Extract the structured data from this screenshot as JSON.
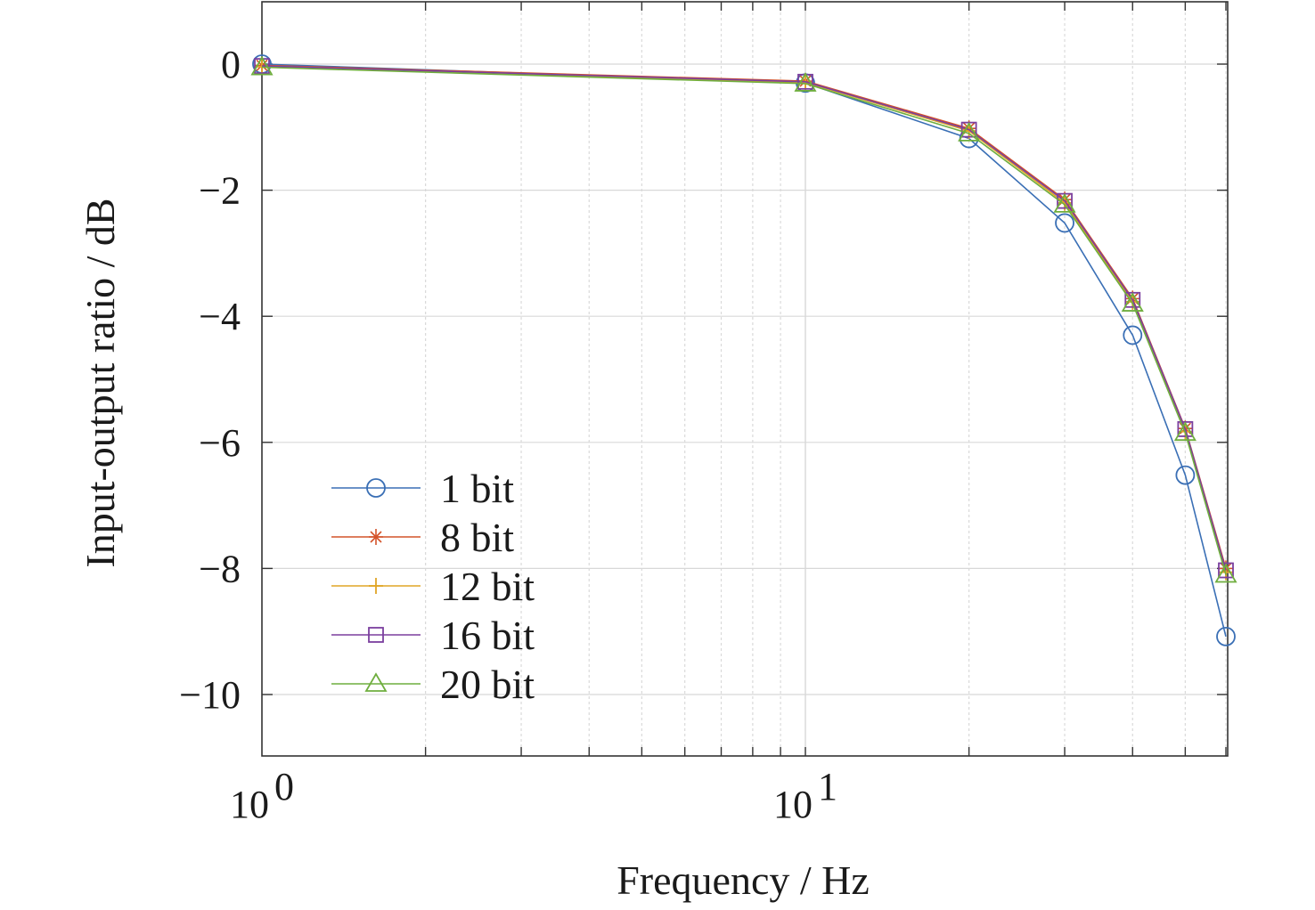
{
  "chart_data": {
    "type": "line",
    "title": "",
    "xlabel": "Frequency / Hz",
    "ylabel": "Input-output ratio / dB",
    "x_scale": "log",
    "xlim": [
      1,
      56
    ],
    "ylim": [
      -11,
      1
    ],
    "grid": true,
    "legend_position": "bottom-left",
    "x_ticks": [
      {
        "value": 1,
        "base": "10",
        "exp": "0"
      },
      {
        "value": 10,
        "base": "10",
        "exp": "1"
      }
    ],
    "y_ticks": [
      {
        "value": 0,
        "label": "0"
      },
      {
        "value": -2,
        "label": "−2"
      },
      {
        "value": -4,
        "label": "−4"
      },
      {
        "value": -6,
        "label": "−6"
      },
      {
        "value": -8,
        "label": "−8"
      },
      {
        "value": -10,
        "label": "−10"
      }
    ],
    "x": [
      1,
      10,
      20,
      30,
      40,
      50,
      60
    ],
    "series": [
      {
        "name": "1 bit",
        "color": "#3a6fb5",
        "marker": "circle",
        "values": [
          0,
          -0.3,
          -1.18,
          -2.52,
          -4.3,
          -6.52,
          -9.08
        ]
      },
      {
        "name": "8 bit",
        "color": "#d4532a",
        "marker": "asterisk",
        "values": [
          -0.02,
          -0.27,
          -1.02,
          -2.15,
          -3.72,
          -5.78,
          -8.0
        ]
      },
      {
        "name": "12 bit",
        "color": "#e0a526",
        "marker": "plus",
        "values": [
          -0.04,
          -0.29,
          -1.06,
          -2.2,
          -3.77,
          -5.83,
          -8.06
        ]
      },
      {
        "name": "16 bit",
        "color": "#7b3f9e",
        "marker": "square",
        "values": [
          -0.03,
          -0.28,
          -1.04,
          -2.17,
          -3.74,
          -5.79,
          -8.03
        ]
      },
      {
        "name": "20 bit",
        "color": "#6fae3e",
        "marker": "triangle",
        "values": [
          -0.05,
          -0.31,
          -1.1,
          -2.23,
          -3.8,
          -5.85,
          -8.1
        ]
      }
    ]
  }
}
